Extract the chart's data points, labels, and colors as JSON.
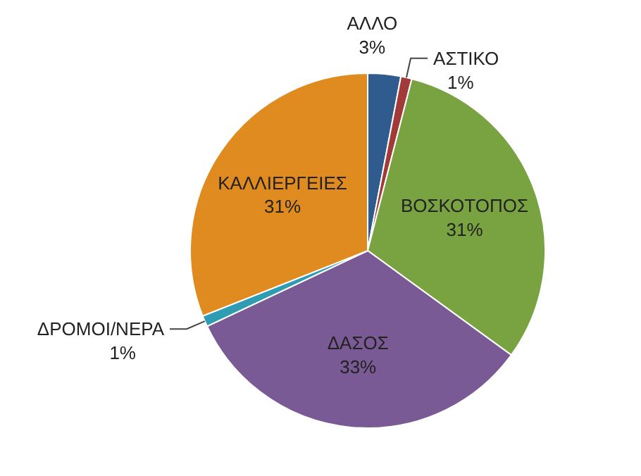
{
  "chart_data": {
    "type": "pie",
    "categories": [
      "ΑΛΛΟ",
      "ΑΣΤΙΚΟ",
      "ΒΟΣΚΟΤΟΠΟΣ",
      "ΔΑΣΟΣ",
      "ΔΡΟΜΟΙ/ΝΕΡΑ",
      "ΚΑΛΛΙΕΡΓΕΙΕΣ"
    ],
    "values": [
      3,
      1,
      31,
      33,
      1,
      31
    ],
    "value_labels": [
      "3%",
      "1%",
      "31%",
      "33%",
      "1%",
      "31%"
    ],
    "colors": [
      "#2f5b8e",
      "#a33a3a",
      "#79a341",
      "#7a5a95",
      "#2e9cb3",
      "#e08b1f"
    ]
  }
}
